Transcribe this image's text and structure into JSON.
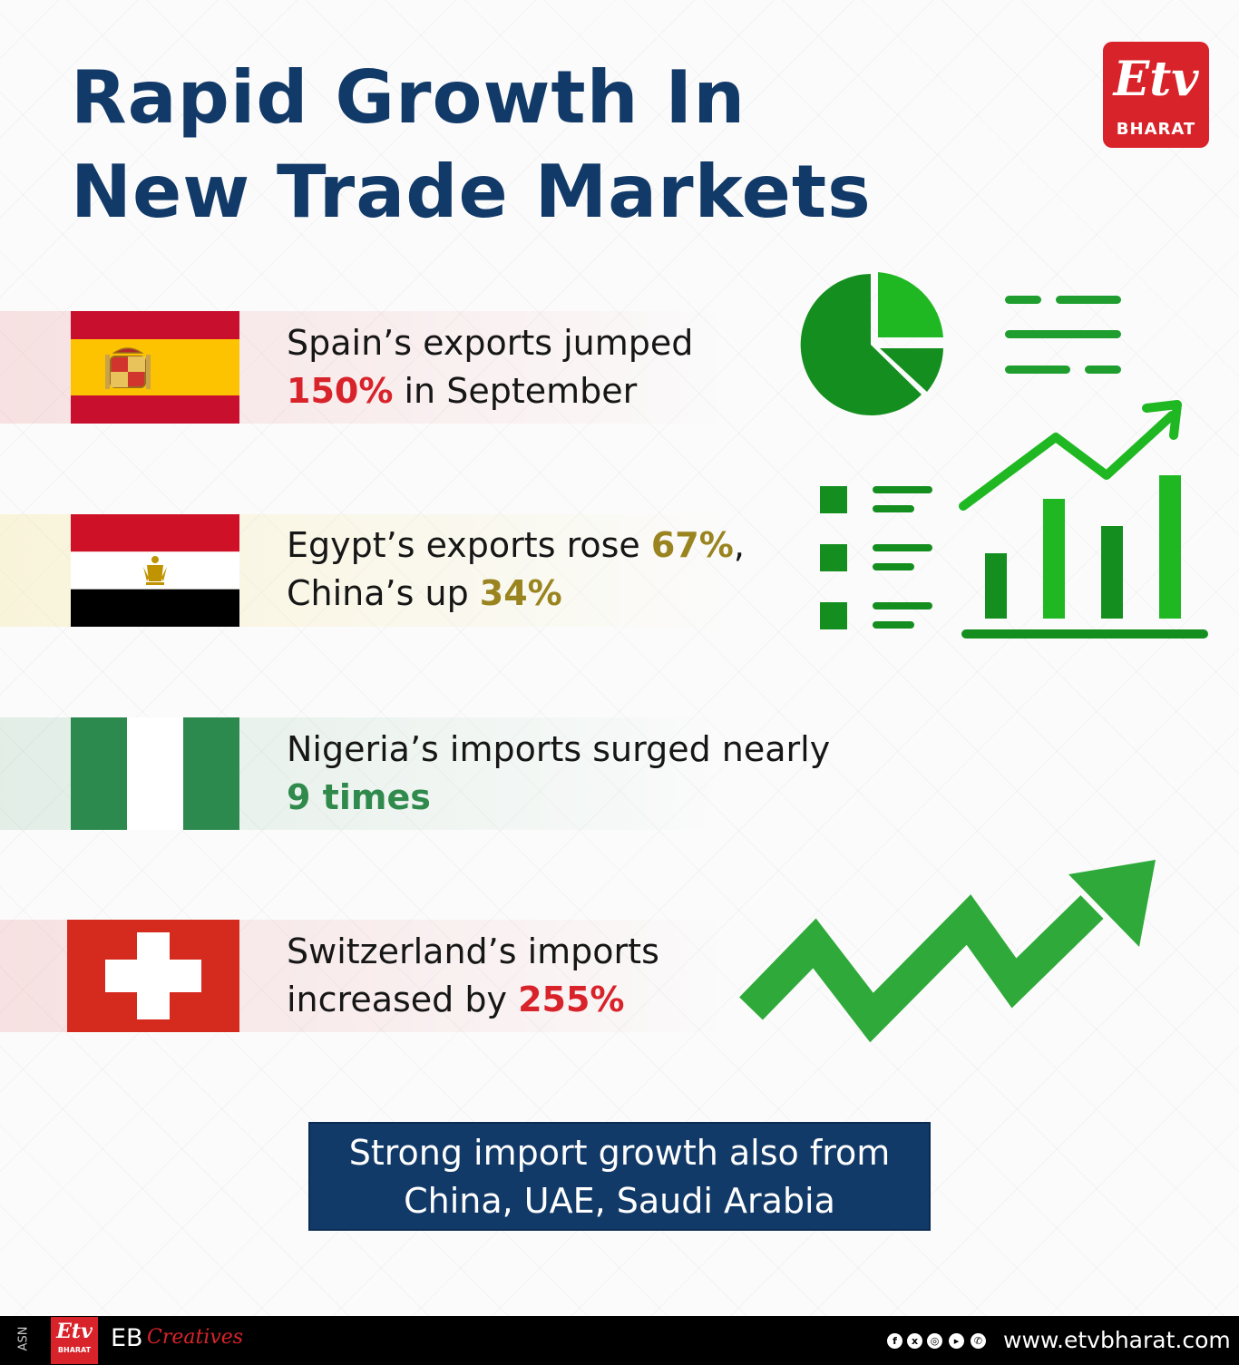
{
  "title": {
    "line1": "Rapid Growth In",
    "line2": "New Trade Markets"
  },
  "logo": {
    "glyph": "Etv",
    "brand": "BHARAT"
  },
  "items": [
    {
      "flag": "spain-flag",
      "line1": "Spain’s exports jumped",
      "line2_highlight": "150%",
      "line2_rest": " in September"
    },
    {
      "flag": "egypt-flag",
      "line1_pre": "Egypt’s exports rose ",
      "line1_highlight": "67%",
      "line1_post": ",",
      "line2_pre": "China’s up ",
      "line2_highlight": "34%"
    },
    {
      "flag": "nigeria-flag",
      "line1": "Nigeria’s imports surged nearly",
      "line2_highlight": "9 times"
    },
    {
      "flag": "switzerland-flag",
      "line1": "Switzerland’s imports",
      "line2_pre": "increased by ",
      "line2_highlight": "255%"
    }
  ],
  "callout": {
    "line1": "Strong import growth also from",
    "line2": "China, UAE, Saudi Arabia"
  },
  "footer": {
    "asn": "ASN",
    "logo_glyph": "Etv",
    "logo_brand": "BHARAT",
    "eb": "EB",
    "creatives": "Creatives",
    "social": [
      "facebook-icon",
      "x-icon",
      "instagram-icon",
      "youtube-icon",
      "whatsapp-icon"
    ],
    "url": "www.etvbharat.com"
  },
  "colors": {
    "title": "#123a68",
    "red": "#d8232a",
    "gold": "#9a8420",
    "green": "#2f8a4c",
    "chart_green": "#1f9e2f"
  }
}
